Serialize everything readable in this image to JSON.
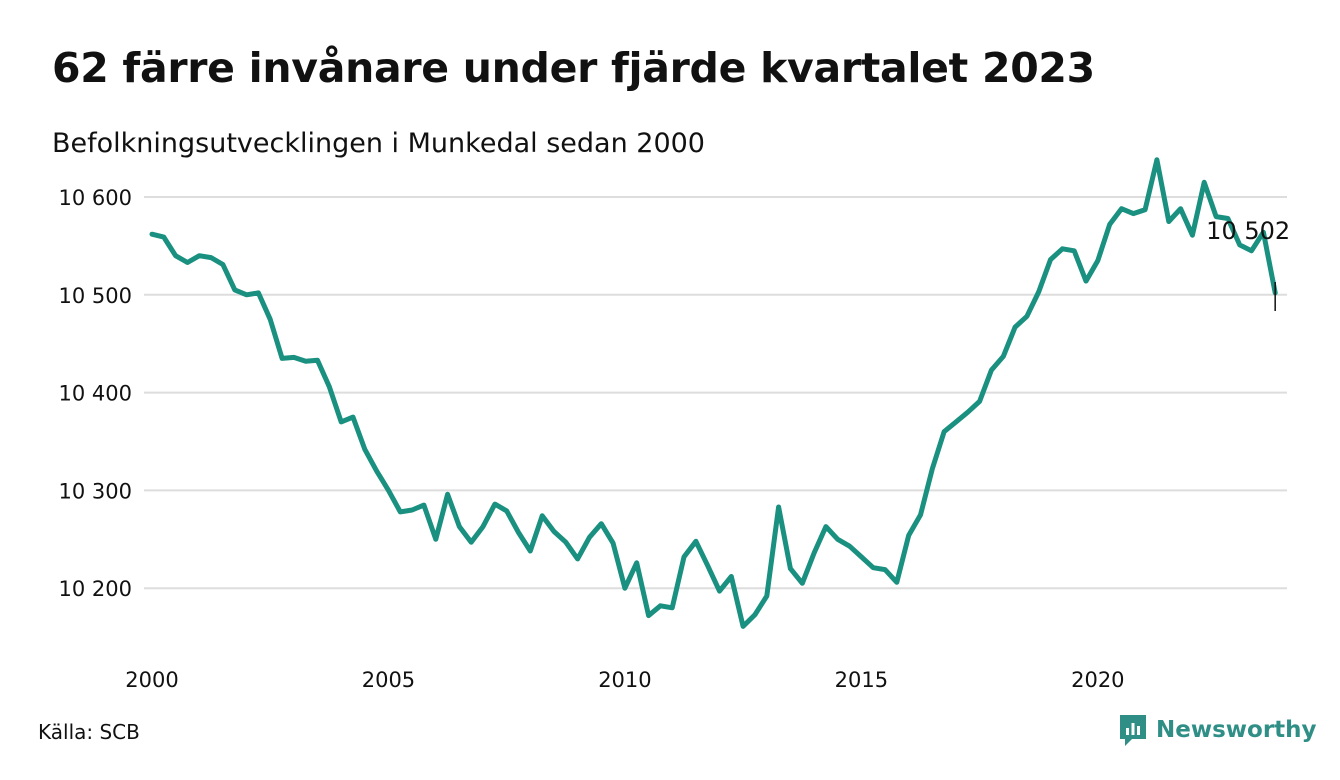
{
  "header": {
    "title": "62 färre invånare under fjärde kvartalet 2023",
    "subtitle": "Befolkningsutvecklingen i Munkedal sedan 2000"
  },
  "footer": {
    "source": "Källa: SCB",
    "brand": "Newsworthy"
  },
  "colors": {
    "line": "#1a9080",
    "grid": "#dddddd",
    "brand": "#2f8f86"
  },
  "icons": {
    "logo": "newsworthy-logo-icon"
  },
  "chart_data": {
    "type": "line",
    "x_label": "",
    "y_label": "",
    "xlim": [
      2000.0,
      2024.0
    ],
    "ylim": [
      10145,
      10645
    ],
    "x_ticks": [
      2000,
      2005,
      2010,
      2015,
      2020
    ],
    "x_tick_labels": [
      "2000",
      "2005",
      "2010",
      "2015",
      "2020"
    ],
    "y_ticks": [
      10200,
      10300,
      10400,
      10500,
      10600
    ],
    "y_tick_labels": [
      "10 200",
      "10 300",
      "10 400",
      "10 500",
      "10 600"
    ],
    "grid": "horizontal",
    "annotation": {
      "label": "10 502",
      "x": 2023.75,
      "y": 10502
    },
    "series": [
      {
        "x": [
          2000.0,
          2000.25,
          2000.5,
          2000.75,
          2001.0,
          2001.25,
          2001.5,
          2001.75,
          2002.0,
          2002.25,
          2002.5,
          2002.75,
          2003.0,
          2003.25,
          2003.5,
          2003.75,
          2004.0,
          2004.25,
          2004.5,
          2004.75,
          2005.0,
          2005.25,
          2005.5,
          2005.75,
          2006.0,
          2006.25,
          2006.5,
          2006.75,
          2007.0,
          2007.25,
          2007.5,
          2007.75,
          2008.0,
          2008.25,
          2008.5,
          2008.75,
          2009.0,
          2009.25,
          2009.5,
          2009.75,
          2010.0,
          2010.25,
          2010.5,
          2010.75,
          2011.0,
          2011.25,
          2011.5,
          2011.75,
          2012.0,
          2012.25,
          2012.5,
          2012.75,
          2013.0,
          2013.25,
          2013.5,
          2013.75,
          2014.0,
          2014.25,
          2014.5,
          2014.75,
          2015.0,
          2015.25,
          2015.5,
          2015.75,
          2016.0,
          2016.25,
          2016.5,
          2016.75,
          2017.0,
          2017.25,
          2017.5,
          2017.75,
          2018.0,
          2018.25,
          2018.5,
          2018.75,
          2019.0,
          2019.25,
          2019.5,
          2019.75,
          2020.0,
          2020.25,
          2020.5,
          2020.75,
          2021.0,
          2021.25,
          2021.5,
          2021.75,
          2022.0,
          2022.25,
          2022.5,
          2022.75,
          2023.0,
          2023.25,
          2023.5,
          2023.75
        ],
        "y": [
          10562,
          10559,
          10540,
          10533,
          10540,
          10538,
          10531,
          10505,
          10500,
          10502,
          10475,
          10435,
          10436,
          10432,
          10433,
          10406,
          10370,
          10375,
          10342,
          10320,
          10300,
          10278,
          10280,
          10285,
          10250,
          10296,
          10263,
          10247,
          10263,
          10286,
          10279,
          10257,
          10238,
          10274,
          10258,
          10247,
          10230,
          10252,
          10266,
          10246,
          10200,
          10226,
          10172,
          10182,
          10180,
          10232,
          10248,
          10223,
          10197,
          10212,
          10161,
          10173,
          10192,
          10283,
          10220,
          10205,
          10236,
          10263,
          10250,
          10243,
          10232,
          10221,
          10219,
          10206,
          10254,
          10275,
          10322,
          10360,
          10370,
          10380,
          10391,
          10423,
          10437,
          10467,
          10478,
          10503,
          10536,
          10547,
          10545,
          10514,
          10535,
          10572,
          10588,
          10583,
          10587,
          10638,
          10575,
          10588,
          10561,
          10615,
          10580,
          10578,
          10551,
          10545,
          10564,
          10502
        ]
      }
    ]
  }
}
